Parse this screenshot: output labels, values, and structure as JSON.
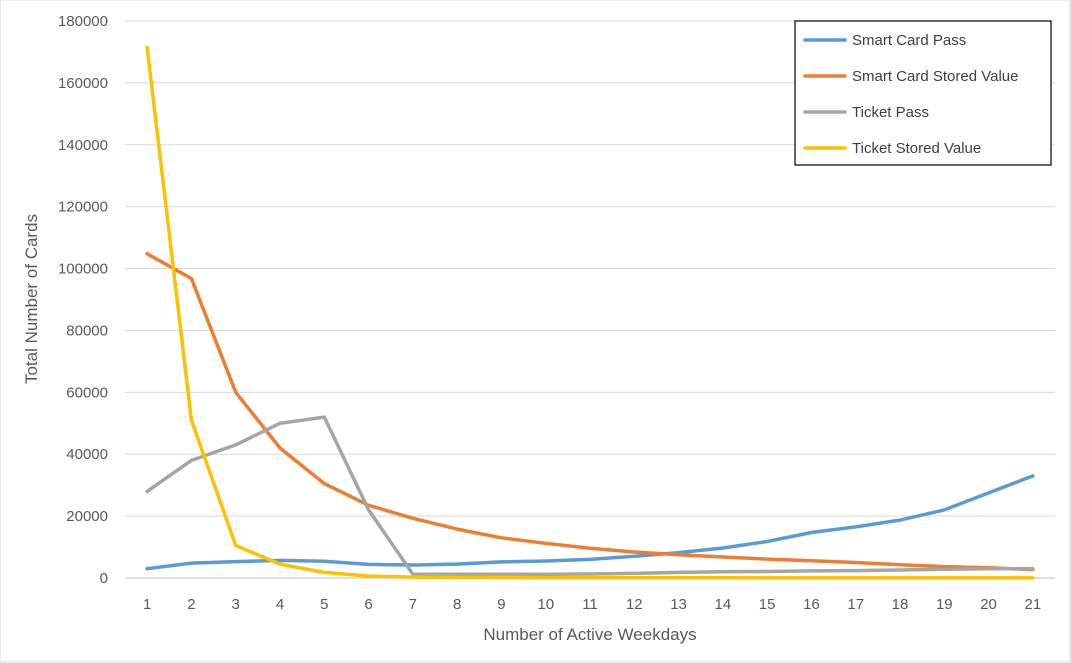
{
  "chart_data": {
    "type": "line",
    "title": "",
    "xlabel": "Number of Active Weekdays",
    "ylabel": "Total Number of Cards",
    "x": [
      1,
      2,
      3,
      4,
      5,
      6,
      7,
      8,
      9,
      10,
      11,
      12,
      13,
      14,
      15,
      16,
      17,
      18,
      19,
      20,
      21
    ],
    "ylim": [
      0,
      180000
    ],
    "ytick_step": 20000,
    "grid": "horizontal",
    "legend_position": "top-right",
    "series": [
      {
        "name": "Smart Card Pass",
        "color": "#5B9BD5",
        "values": [
          3000,
          4800,
          5300,
          5700,
          5400,
          4400,
          4200,
          4500,
          5200,
          5500,
          6000,
          7000,
          8200,
          9700,
          11800,
          14700,
          16500,
          18700,
          22000,
          27500,
          33000
        ]
      },
      {
        "name": "Smart Card Stored Value",
        "color": "#ED7D31",
        "values": [
          104800,
          96800,
          60000,
          42000,
          30500,
          23500,
          19300,
          15800,
          13000,
          11200,
          9600,
          8400,
          7500,
          6800,
          6100,
          5600,
          5000,
          4300,
          3700,
          3300,
          2700
        ]
      },
      {
        "name": "Ticket Pass",
        "color": "#A5A5A5",
        "values": [
          28000,
          38000,
          43000,
          50000,
          52000,
          22000,
          1200,
          1200,
          1200,
          1200,
          1300,
          1500,
          1800,
          2000,
          2100,
          2300,
          2400,
          2600,
          2800,
          3000,
          3000
        ]
      },
      {
        "name": "Ticket Stored Value",
        "color": "#FFC000",
        "values": [
          171500,
          51000,
          10500,
          4500,
          1800,
          600,
          300,
          200,
          150,
          100,
          100,
          80,
          60,
          50,
          40,
          30,
          30,
          20,
          20,
          20,
          20
        ]
      }
    ]
  }
}
